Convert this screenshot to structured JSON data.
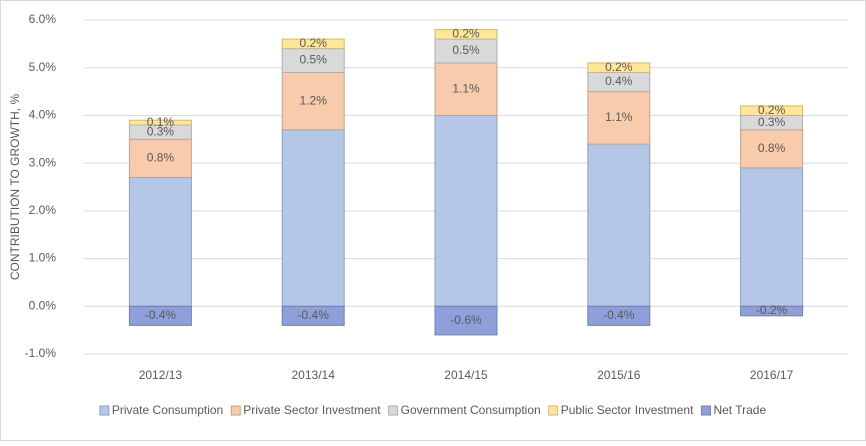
{
  "chart_data": {
    "type": "stacked_bar",
    "y_label": "CONTRIBUTION TO GROWTH, %",
    "categories": [
      "2012/13",
      "2013/14",
      "2014/15",
      "2015/16",
      "2016/17"
    ],
    "series": [
      {
        "name": "Private Consumption",
        "color": "#b4c7e7",
        "values": [
          2.7,
          3.7,
          4.0,
          3.4,
          2.9
        ]
      },
      {
        "name": "Private Sector Investment",
        "color": "#f8cbad",
        "values": [
          0.8,
          1.2,
          1.1,
          1.1,
          0.8
        ],
        "value_labels": [
          "0.8%",
          "1.2%",
          "1.1%",
          "1.1%",
          "0.8%"
        ]
      },
      {
        "name": "Government Consumption",
        "color": "#d9d9d9",
        "values": [
          0.3,
          0.5,
          0.5,
          0.4,
          0.3
        ],
        "value_labels": [
          "0.3%",
          "0.5%",
          "0.5%",
          "0.4%",
          "0.3%"
        ]
      },
      {
        "name": "Public Sector Investment",
        "color": "#ffe699",
        "values": [
          0.1,
          0.2,
          0.2,
          0.2,
          0.2
        ],
        "value_labels": [
          "0.1%",
          "0.2%",
          "0.2%",
          "0.2%",
          "0.2%"
        ]
      },
      {
        "name": "Net Trade",
        "color": "#8e9fda",
        "values": [
          -0.4,
          -0.4,
          -0.6,
          -0.4,
          -0.2
        ],
        "value_labels": [
          "-0.4%",
          "-0.4%",
          "-0.6%",
          "-0.4%",
          "-0.2%"
        ]
      }
    ],
    "ylim": [
      -1,
      6
    ],
    "yticks": [
      {
        "value": -1,
        "label": "-1.0%"
      },
      {
        "value": 0,
        "label": "0.0%"
      },
      {
        "value": 1,
        "label": "1.0%"
      },
      {
        "value": 2,
        "label": "2.0%"
      },
      {
        "value": 3,
        "label": "3.0%"
      },
      {
        "value": 4,
        "label": "4.0%"
      },
      {
        "value": 5,
        "label": "5.0%"
      },
      {
        "value": 6,
        "label": "6.0%"
      }
    ],
    "grid": true,
    "legend": "bottom"
  }
}
